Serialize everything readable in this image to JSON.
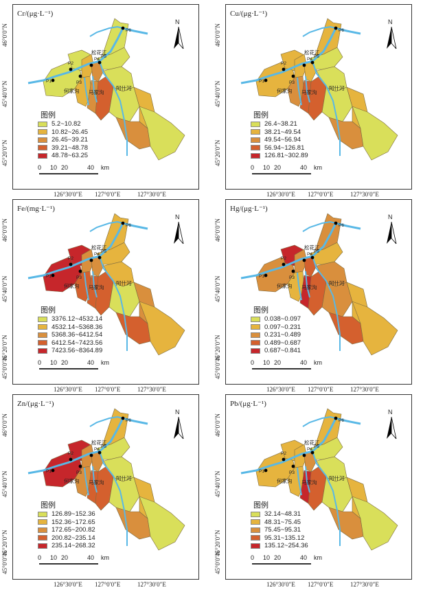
{
  "legend_title": "图例",
  "scale": {
    "t0": "0",
    "t1": "10",
    "t2": "20",
    "t3": "40",
    "unit": "km"
  },
  "axes": {
    "y": [
      "46°0′0″N",
      "45°40′0″N",
      "45°20′0″N",
      "45°0′0″N"
    ],
    "x": [
      "126°30′0″E",
      "127°0′0″E",
      "127°30′0″E"
    ]
  },
  "places": {
    "river_main": "松花江",
    "river_a": "阿什河",
    "river_b": "何家沟",
    "river_c": "马家沟"
  },
  "points": [
    "P1",
    "P2",
    "P3",
    "P4",
    "P5",
    "P6"
  ],
  "north": "N",
  "colors": {
    "c1": "#d9df5a",
    "c2": "#e6b43e",
    "c3": "#d98f3d",
    "c4": "#d4602e",
    "c5": "#c6262b",
    "river": "#58b8e6"
  },
  "panels": [
    {
      "title": "Cr/(μg·L⁻¹)",
      "legend": [
        "5.2~10.82",
        "10.82~26.45",
        "26.45~39.21",
        "39.21~48.78",
        "48.78~63.25"
      ],
      "fills": [
        1,
        1,
        2,
        2,
        3,
        3,
        4,
        1,
        1,
        1,
        2,
        3,
        1,
        1
      ]
    },
    {
      "title": "Cu/(μg·L⁻¹)",
      "legend": [
        "26.4~38.21",
        "38.21~49.54",
        "49.54~56.94",
        "56.94~126.81",
        "126.81~302.89"
      ],
      "fills": [
        2,
        2,
        3,
        2,
        2,
        4,
        4,
        1,
        1,
        1,
        2,
        3,
        1,
        2
      ]
    },
    {
      "title": "Fe/(mg·L⁻¹)",
      "legend": [
        "3376.12~4532.14",
        "4532.14~5368.36",
        "5368.36~6412.54",
        "6412.54~7423.56",
        "7423.56~8364.89"
      ],
      "fills": [
        5,
        5,
        4,
        3,
        3,
        4,
        4,
        2,
        2,
        1,
        3,
        4,
        2,
        2
      ]
    },
    {
      "title": "Hg/(μg·L⁻¹)",
      "legend": [
        "0.038~0.097",
        "0.097~0.231",
        "0.231~0.489",
        "0.489~0.687",
        "0.687~0.841"
      ],
      "fills": [
        3,
        5,
        2,
        3,
        4,
        5,
        4,
        2,
        3,
        3,
        2,
        4,
        2,
        3
      ]
    },
    {
      "title": "Zn/(μg·L⁻¹)",
      "legend": [
        "126.89~152.36",
        "152.36~172.65",
        "172.65~200.82",
        "200.82~235.14",
        "235.14~268.32"
      ],
      "fills": [
        5,
        5,
        3,
        3,
        3,
        4,
        4,
        1,
        1,
        1,
        2,
        3,
        1,
        2
      ]
    },
    {
      "title": "Pb/(μg·L⁻¹)",
      "legend": [
        "32.14~48.31",
        "48.31~75.45",
        "75.45~95.31",
        "95.31~135.12",
        "135.12~254.36"
      ],
      "fills": [
        2,
        2,
        2,
        2,
        3,
        5,
        4,
        1,
        1,
        1,
        2,
        3,
        1,
        2
      ]
    }
  ]
}
